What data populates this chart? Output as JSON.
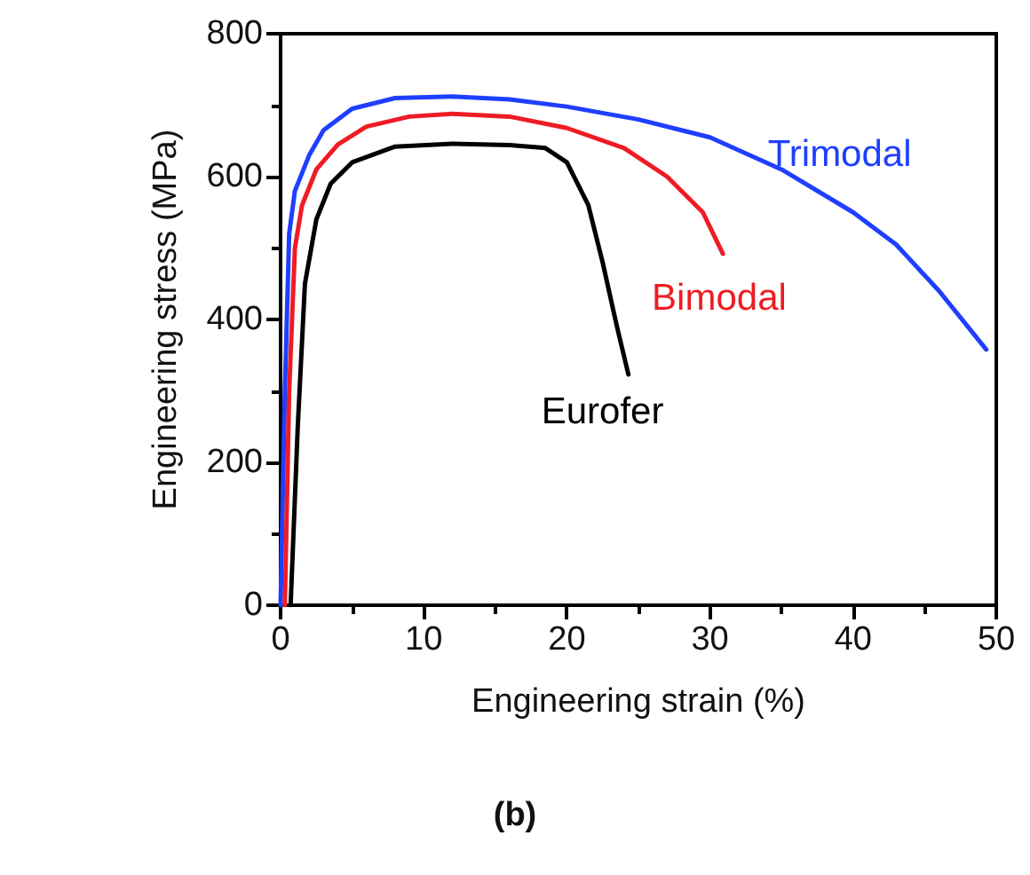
{
  "chart_data": {
    "type": "line",
    "xlabel": "Engineering strain (%)",
    "ylabel": "Engineering stress (MPa)",
    "annotations": [
      "(b)"
    ],
    "xlim": [
      0,
      50
    ],
    "xticks": [
      0,
      10,
      20,
      30,
      40,
      50
    ],
    "ylim": [
      0,
      800
    ],
    "yticks": [
      0,
      200,
      400,
      600,
      800
    ],
    "grid": false,
    "legend": false,
    "marker": "none",
    "line_style": "solid",
    "series": [
      {
        "name": "Trimodal",
        "color": "#1f3fff",
        "x": [
          0,
          0.3,
          0.6,
          1,
          2,
          3,
          5,
          8,
          12,
          16,
          20,
          25,
          30,
          35,
          40,
          43,
          46,
          49.3
        ],
        "values": [
          0,
          300,
          520,
          580,
          630,
          665,
          695,
          710,
          712,
          708,
          698,
          680,
          655,
          610,
          550,
          505,
          440,
          358
        ]
      },
      {
        "name": "Bimodal",
        "color": "#ee1c25",
        "x": [
          0.3,
          0.6,
          1,
          1.5,
          2.5,
          4,
          6,
          9,
          12,
          16,
          20,
          24,
          27,
          29.5,
          30.9
        ],
        "values": [
          0,
          300,
          500,
          560,
          610,
          645,
          670,
          684,
          688,
          684,
          668,
          640,
          600,
          550,
          492
        ]
      },
      {
        "name": "Eurofer",
        "color": "#000000",
        "x": [
          0.7,
          1.2,
          1.7,
          2.5,
          3.5,
          5,
          8,
          12,
          16,
          18.5,
          20,
          21.5,
          22.5,
          23.5,
          24.3
        ],
        "values": [
          0,
          250,
          450,
          540,
          590,
          620,
          642,
          646,
          644,
          640,
          620,
          560,
          480,
          390,
          323
        ]
      }
    ]
  }
}
